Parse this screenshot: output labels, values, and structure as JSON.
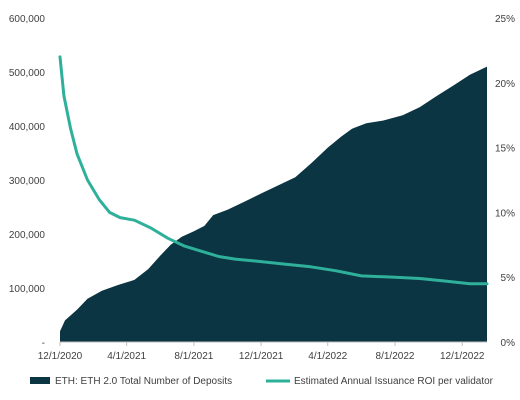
{
  "chart_data": {
    "type": "area",
    "x_tick_labels": [
      "12/1/2020",
      "4/1/2021",
      "8/1/2021",
      "12/1/2021",
      "4/1/2022",
      "8/1/2022",
      "12/1/2022"
    ],
    "x_range": [
      "2020-12-01",
      "2023-01-15"
    ],
    "y_left": {
      "range": [
        0,
        600000
      ],
      "tick_values": [
        0,
        100000,
        200000,
        300000,
        400000,
        500000,
        600000
      ],
      "tick_labels": [
        "-",
        "100,000",
        "200,000",
        "300,000",
        "400,000",
        "500,000",
        "600,000"
      ]
    },
    "y_right": {
      "range": [
        0,
        25
      ],
      "tick_values": [
        0,
        5,
        10,
        15,
        20,
        25
      ],
      "tick_labels": [
        "0%",
        "5%",
        "10%",
        "15%",
        "20%",
        "25%"
      ]
    },
    "grid": false,
    "legend_position": "bottom",
    "series": [
      {
        "name": "ETH: ETH 2.0 Total Number of Deposits",
        "kind": "area",
        "axis": "left",
        "color": "#0b3542",
        "points": [
          [
            "2020-12-01",
            20000
          ],
          [
            "2020-12-10",
            40000
          ],
          [
            "2021-01-01",
            60000
          ],
          [
            "2021-01-20",
            80000
          ],
          [
            "2021-02-15",
            95000
          ],
          [
            "2021-03-15",
            105000
          ],
          [
            "2021-04-15",
            115000
          ],
          [
            "2021-05-10",
            135000
          ],
          [
            "2021-06-01",
            160000
          ],
          [
            "2021-06-20",
            180000
          ],
          [
            "2021-07-10",
            195000
          ],
          [
            "2021-08-01",
            205000
          ],
          [
            "2021-08-20",
            215000
          ],
          [
            "2021-09-05",
            235000
          ],
          [
            "2021-10-01",
            245000
          ],
          [
            "2021-11-01",
            260000
          ],
          [
            "2021-12-01",
            275000
          ],
          [
            "2022-01-01",
            290000
          ],
          [
            "2022-02-01",
            305000
          ],
          [
            "2022-03-01",
            330000
          ],
          [
            "2022-04-01",
            360000
          ],
          [
            "2022-04-25",
            380000
          ],
          [
            "2022-05-15",
            395000
          ],
          [
            "2022-06-10",
            405000
          ],
          [
            "2022-07-10",
            410000
          ],
          [
            "2022-08-15",
            420000
          ],
          [
            "2022-09-15",
            435000
          ],
          [
            "2022-10-15",
            455000
          ],
          [
            "2022-11-15",
            475000
          ],
          [
            "2022-12-15",
            495000
          ],
          [
            "2023-01-15",
            510000
          ]
        ]
      },
      {
        "name": "Estimated Annual Issuance ROI per validator",
        "kind": "line",
        "axis": "right",
        "color": "#2fb09a",
        "points": [
          [
            "2020-12-01",
            22.0
          ],
          [
            "2020-12-08",
            19.0
          ],
          [
            "2020-12-20",
            16.5
          ],
          [
            "2021-01-01",
            14.5
          ],
          [
            "2021-01-20",
            12.5
          ],
          [
            "2021-02-10",
            11.0
          ],
          [
            "2021-03-01",
            10.0
          ],
          [
            "2021-03-20",
            9.6
          ],
          [
            "2021-04-15",
            9.4
          ],
          [
            "2021-05-15",
            8.8
          ],
          [
            "2021-06-15",
            8.0
          ],
          [
            "2021-07-15",
            7.4
          ],
          [
            "2021-08-15",
            7.0
          ],
          [
            "2021-09-15",
            6.6
          ],
          [
            "2021-10-15",
            6.4
          ],
          [
            "2021-12-01",
            6.2
          ],
          [
            "2022-01-15",
            6.0
          ],
          [
            "2022-03-01",
            5.8
          ],
          [
            "2022-04-15",
            5.5
          ],
          [
            "2022-06-01",
            5.1
          ],
          [
            "2022-08-01",
            5.0
          ],
          [
            "2022-09-15",
            4.9
          ],
          [
            "2022-11-01",
            4.7
          ],
          [
            "2022-12-15",
            4.5
          ],
          [
            "2023-01-15",
            4.5
          ]
        ]
      }
    ]
  }
}
